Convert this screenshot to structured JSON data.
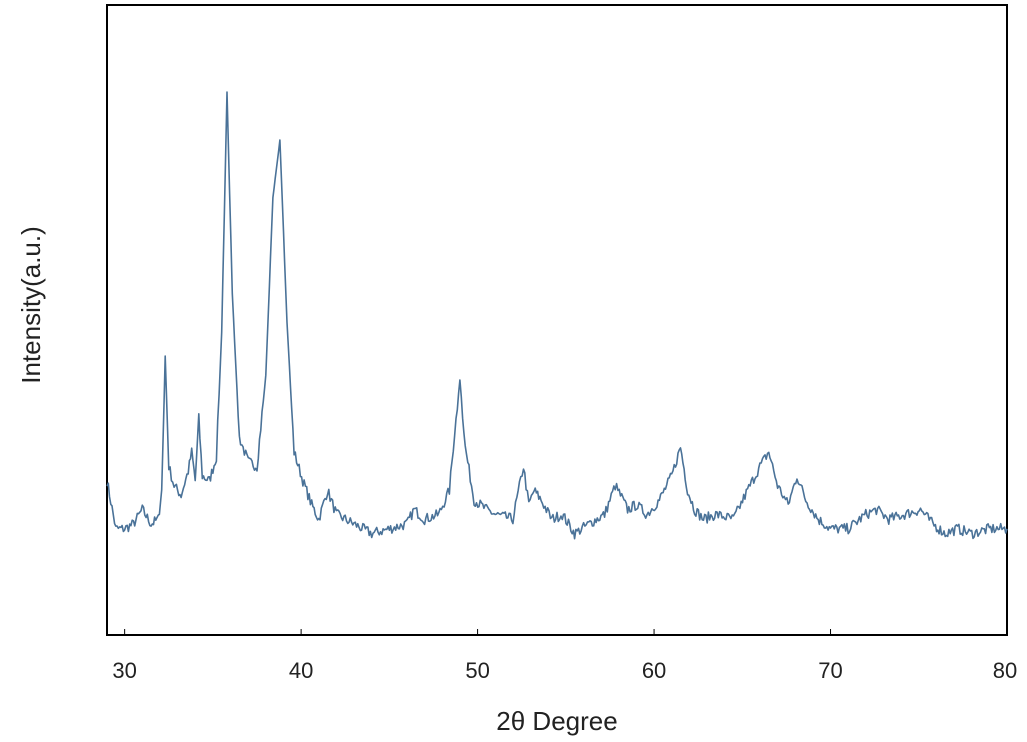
{
  "chart_data": {
    "type": "line",
    "title": "",
    "xlabel": "2θ Degree",
    "ylabel": "Intensity(a.u.)",
    "xlim": [
      29,
      80
    ],
    "ylim": [
      0,
      100
    ],
    "xticks": [
      "30",
      "40",
      "50",
      "60",
      "70",
      "80"
    ],
    "yticks": [],
    "grid": false,
    "legend": "none",
    "series": [
      {
        "color": "#4a7298",
        "x": [
          29.0,
          29.5,
          30.0,
          30.5,
          31.0,
          31.5,
          31.9,
          32.1,
          32.3,
          32.5,
          32.8,
          33.2,
          33.6,
          33.8,
          34.0,
          34.2,
          34.4,
          34.8,
          35.2,
          35.5,
          35.8,
          36.1,
          36.5,
          37.0,
          37.5,
          38.0,
          38.4,
          38.8,
          39.2,
          39.6,
          40.1,
          40.6,
          41.0,
          41.5,
          42.0,
          43.0,
          44.0,
          45.0,
          46.0,
          46.4,
          47.0,
          47.8,
          48.4,
          48.7,
          49.0,
          49.3,
          49.8,
          50.5,
          51.0,
          52.0,
          52.6,
          52.9,
          53.2,
          53.6,
          54.2,
          54.8,
          55.5,
          56.3,
          57.2,
          57.8,
          58.1,
          58.5,
          59.0,
          59.6,
          60.3,
          61.0,
          61.5,
          61.9,
          62.3,
          62.8,
          63.5,
          64.5,
          65.3,
          66.0,
          66.5,
          67.0,
          67.6,
          68.1,
          68.6,
          69.3,
          70.0,
          71.0,
          72.0,
          72.6,
          73.3,
          74.2,
          75.1,
          75.8,
          76.5,
          77.2,
          78.0,
          79.0,
          80.0
        ],
        "y": [
          19,
          9,
          9,
          10,
          13,
          10,
          11,
          17,
          45,
          22,
          18,
          16,
          21,
          25,
          19,
          32,
          20,
          19,
          24,
          50,
          100,
          58,
          28,
          23,
          22,
          41,
          78,
          90,
          52,
          25,
          19,
          14,
          11,
          17,
          12,
          10,
          8,
          9,
          10,
          13,
          11,
          12,
          17,
          29,
          40,
          26,
          15,
          13,
          12,
          11,
          22,
          14,
          17,
          15,
          11,
          12,
          8,
          10,
          12,
          18,
          16,
          13,
          14,
          12,
          15,
          20,
          26,
          17,
          13,
          11,
          12,
          11,
          17,
          22,
          25,
          18,
          14,
          20,
          15,
          11,
          9,
          9,
          12,
          13,
          11,
          12,
          13,
          10,
          8,
          9,
          8,
          9,
          9
        ]
      }
    ]
  }
}
